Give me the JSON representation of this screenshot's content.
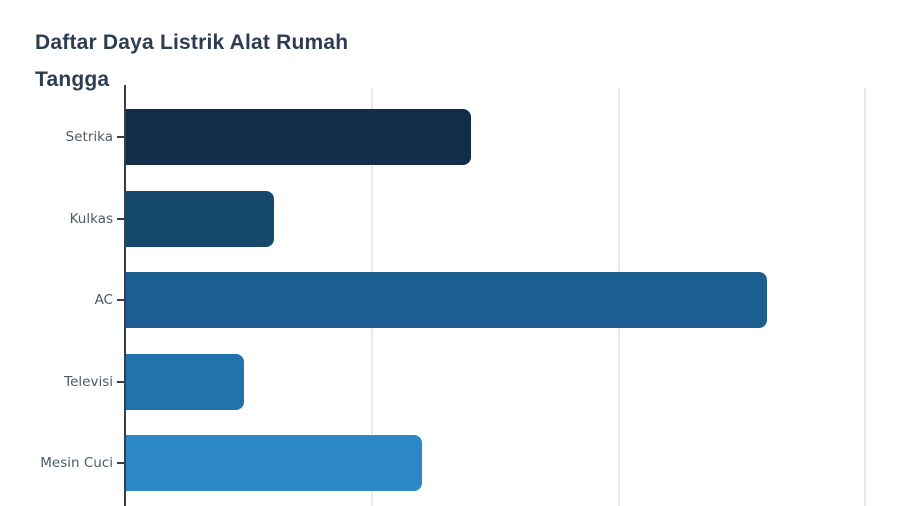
{
  "chart": {
    "title": "Daftar Daya Listrik Alat Rumah Tangga"
  },
  "chart_data": {
    "type": "bar",
    "orientation": "horizontal",
    "title": "Daftar Daya Listrik Alat Rumah Tangga",
    "categories": [
      "Setrika",
      "Kulkas",
      "AC",
      "Televisi",
      "Mesin Cuci"
    ],
    "values": [
      350,
      150,
      650,
      120,
      300
    ],
    "bar_colors": [
      "#102e47",
      "#16486c",
      "#1d5e90",
      "#2273ab",
      "#2b87c6"
    ],
    "xlabel": "",
    "ylabel": "",
    "xlim": [
      0,
      785
    ],
    "gridline_values": [
      250,
      500,
      750
    ],
    "grid": true,
    "legend": false,
    "gridline_color": "#e9e9e9",
    "axis_color": "#343f4b",
    "title_color": "#2e3c52",
    "label_color": "#4e5a66",
    "background": "#ffffff"
  }
}
